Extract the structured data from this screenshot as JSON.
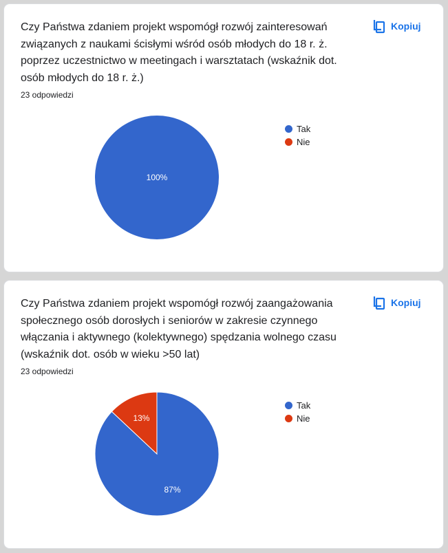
{
  "colors": {
    "tak": "#3366cc",
    "nie": "#dc3912",
    "accent": "#1a73e8"
  },
  "cards": [
    {
      "question": "Czy Państwa zdaniem projekt wspomógł rozwój zainteresowań związanych z naukami ścisłymi wśród osób młodych do 18 r. ż. poprzez uczestnictwo w meetingach i warsztatach (wskaźnik dot. osób młodych do 18 r. ż.)",
      "responses": "23 odpowiedzi",
      "copy_label": "Kopiuj",
      "copy_icon": "copy-icon",
      "legend": [
        "Tak",
        "Nie"
      ],
      "chart_data": {
        "type": "pie",
        "categories": [
          "Tak",
          "Nie"
        ],
        "values": [
          100,
          0
        ],
        "labels": [
          "100%",
          ""
        ],
        "colors": [
          "#3366cc",
          "#dc3912"
        ],
        "legend_position": "right"
      }
    },
    {
      "question": "Czy Państwa zdaniem projekt wspomógł rozwój zaangażowania społecznego osób dorosłych i seniorów w zakresie czynnego włączania i aktywnego (kolektywnego) spędzania wolnego czasu (wskaźnik dot. osób w wieku >50 lat)",
      "responses": "23 odpowiedzi",
      "copy_label": "Kopiuj",
      "copy_icon": "copy-icon",
      "legend": [
        "Tak",
        "Nie"
      ],
      "chart_data": {
        "type": "pie",
        "categories": [
          "Tak",
          "Nie"
        ],
        "values": [
          87,
          13
        ],
        "labels": [
          "87%",
          "13%"
        ],
        "colors": [
          "#3366cc",
          "#dc3912"
        ],
        "legend_position": "right"
      }
    }
  ]
}
